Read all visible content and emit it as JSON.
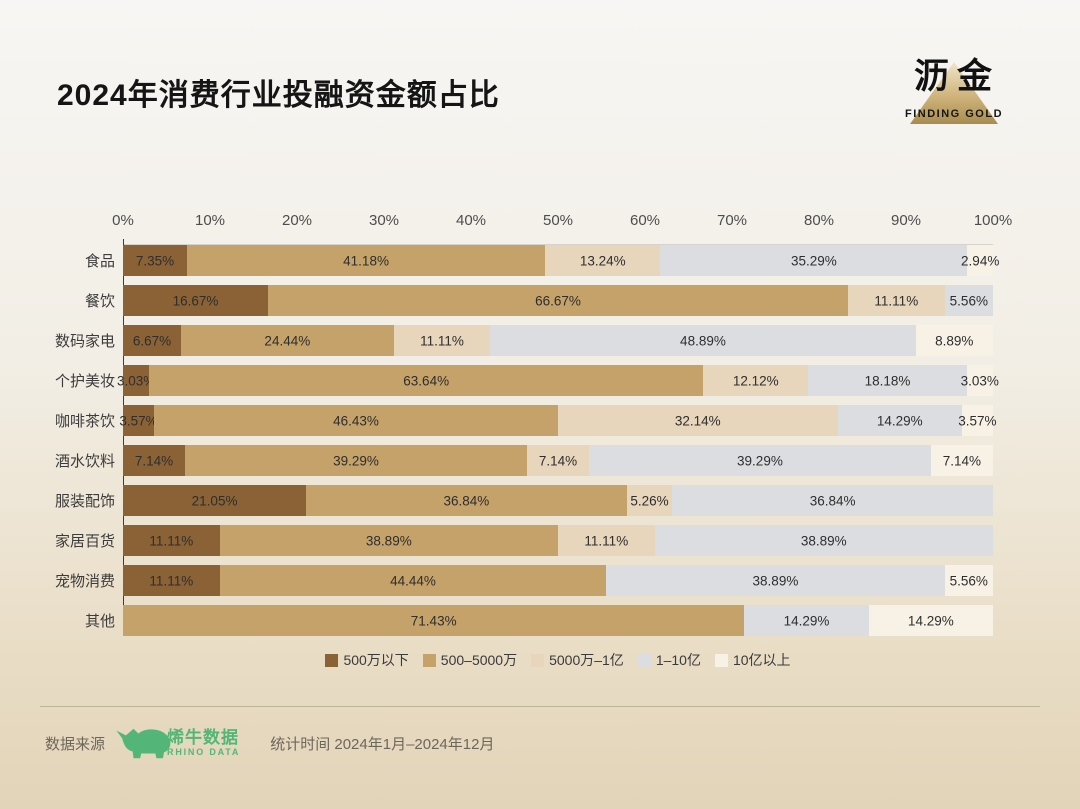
{
  "title": "2024年消费行业投融资金额占比",
  "logo": {
    "name": "沥金",
    "subtitle": "FINDING GOLD"
  },
  "chart_data": {
    "type": "bar",
    "orientation": "horizontal",
    "stacked": true,
    "title": "2024年消费行业投融资金额占比",
    "categories": [
      "食品",
      "餐饮",
      "数码家电",
      "个护美妆",
      "咖啡茶饮",
      "酒水饮料",
      "服装配饰",
      "家居百货",
      "宠物消费",
      "其他"
    ],
    "series": [
      {
        "name": "500万以下",
        "color": "#8b6235",
        "values": [
          7.35,
          16.67,
          6.67,
          3.03,
          3.57,
          7.14,
          21.05,
          11.11,
          11.11,
          0
        ]
      },
      {
        "name": "500–5000万",
        "color": "#c4a269",
        "values": [
          41.18,
          66.67,
          24.44,
          63.64,
          46.43,
          39.29,
          36.84,
          38.89,
          44.44,
          71.43
        ]
      },
      {
        "name": "5000万–1亿",
        "color": "#e7d5bc",
        "values": [
          13.24,
          11.11,
          11.11,
          12.12,
          32.14,
          7.14,
          5.26,
          11.11,
          0,
          0
        ]
      },
      {
        "name": "1–10亿",
        "color": "#dbdde0",
        "values": [
          35.29,
          5.56,
          48.89,
          18.18,
          14.29,
          39.29,
          36.84,
          38.89,
          38.89,
          14.29
        ]
      },
      {
        "name": "10亿以上",
        "color": "#f7f2e5",
        "values": [
          2.94,
          0,
          8.89,
          3.03,
          3.57,
          7.14,
          0,
          0,
          5.56,
          14.29
        ]
      }
    ],
    "x_ticks": [
      "0%",
      "10%",
      "20%",
      "30%",
      "40%",
      "50%",
      "60%",
      "70%",
      "80%",
      "90%",
      "100%"
    ],
    "xlim": [
      0,
      100
    ],
    "value_suffix": "%",
    "grid": false,
    "legend_position": "bottom"
  },
  "footer": {
    "source_label": "数据来源",
    "source_name": "烯牛数据",
    "source_subname": "RHINO DATA",
    "period": "统计时间 2024年1月–2024年12月",
    "brand_green": "#53b678"
  }
}
